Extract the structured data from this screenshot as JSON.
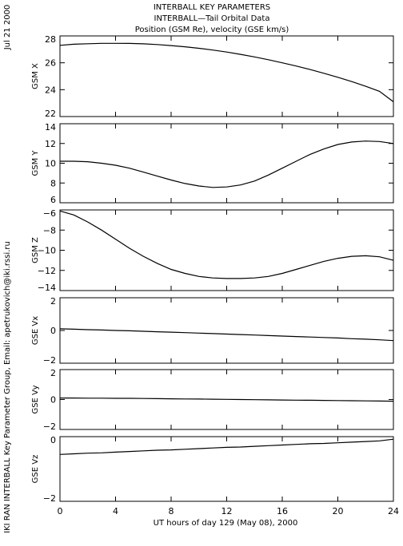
{
  "header": {
    "title_line1": "INTERBALL KEY PARAMETERS",
    "title_line2": "INTERBALL—Tail Orbital Data",
    "title_line3": "Position (GSM Re), velocity (GSE km/s)",
    "date": "Jul 21 2000",
    "credit": "IKI RAN INTERBALL Key Parameter Group, Email: apetrukovich@iki.rssi.ru"
  },
  "chart_data": {
    "type": "line",
    "xlabel": "UT hours of day 129 (May 08), 2000",
    "xlim": [
      0,
      24
    ],
    "xticks": [
      0,
      4,
      8,
      12,
      16,
      20,
      24
    ],
    "x": [
      0,
      1,
      2,
      3,
      4,
      5,
      6,
      7,
      8,
      9,
      10,
      11,
      12,
      13,
      14,
      15,
      16,
      17,
      18,
      19,
      20,
      21,
      22,
      23,
      24
    ],
    "panels": [
      {
        "ylabel": "GSM X",
        "ylim": [
          22,
          28
        ],
        "yticks": [
          22,
          24,
          26,
          28
        ],
        "values": [
          27.3,
          27.38,
          27.42,
          27.45,
          27.45,
          27.44,
          27.41,
          27.36,
          27.28,
          27.19,
          27.08,
          26.95,
          26.8,
          26.63,
          26.44,
          26.23,
          26.0,
          25.76,
          25.5,
          25.22,
          24.92,
          24.6,
          24.25,
          23.88,
          23.1
        ]
      },
      {
        "ylabel": "GSM Y",
        "ylim": [
          6,
          14
        ],
        "yticks": [
          6,
          8,
          10,
          12,
          14
        ],
        "values": [
          10.2,
          10.2,
          10.15,
          10.0,
          9.8,
          9.5,
          9.1,
          8.7,
          8.3,
          7.95,
          7.7,
          7.55,
          7.6,
          7.8,
          8.2,
          8.8,
          9.5,
          10.2,
          10.9,
          11.45,
          11.9,
          12.15,
          12.25,
          12.2,
          12.0
        ]
      },
      {
        "ylabel": "GSM Z",
        "ylim": [
          -14,
          -6
        ],
        "yticks": [
          -6,
          -8,
          -10,
          -12,
          -14
        ],
        "values": [
          -6.1,
          -6.5,
          -7.2,
          -8.0,
          -8.9,
          -9.8,
          -10.6,
          -11.3,
          -11.9,
          -12.3,
          -12.6,
          -12.75,
          -12.8,
          -12.8,
          -12.75,
          -12.6,
          -12.3,
          -11.9,
          -11.5,
          -11.1,
          -10.8,
          -10.6,
          -10.55,
          -10.65,
          -11.0
        ]
      },
      {
        "ylabel": "GSE Vx",
        "ylim": [
          -2,
          2
        ],
        "yticks": [
          -2,
          0,
          2
        ],
        "values": [
          0.1,
          0.08,
          0.05,
          0.03,
          0.0,
          -0.02,
          -0.05,
          -0.08,
          -0.1,
          -0.13,
          -0.16,
          -0.19,
          -0.22,
          -0.25,
          -0.28,
          -0.31,
          -0.34,
          -0.37,
          -0.4,
          -0.43,
          -0.46,
          -0.5,
          -0.53,
          -0.57,
          -0.62
        ]
      },
      {
        "ylabel": "GSE Vy",
        "ylim": [
          -2,
          2
        ],
        "yticks": [
          -2,
          0,
          2
        ],
        "values": [
          0.1,
          0.1,
          0.09,
          0.09,
          0.08,
          0.08,
          0.07,
          0.06,
          0.05,
          0.04,
          0.03,
          0.02,
          0.01,
          0.0,
          -0.01,
          -0.02,
          -0.03,
          -0.04,
          -0.05,
          -0.06,
          -0.07,
          -0.08,
          -0.09,
          -0.1,
          -0.11
        ]
      },
      {
        "ylabel": "GSE Vz",
        "ylim": [
          -2,
          0
        ],
        "yticks": [
          -2,
          0
        ],
        "values": [
          -0.55,
          -0.53,
          -0.51,
          -0.5,
          -0.48,
          -0.46,
          -0.44,
          -0.42,
          -0.41,
          -0.39,
          -0.37,
          -0.35,
          -0.33,
          -0.32,
          -0.3,
          -0.28,
          -0.26,
          -0.24,
          -0.22,
          -0.21,
          -0.19,
          -0.17,
          -0.15,
          -0.13,
          -0.08
        ]
      }
    ]
  }
}
